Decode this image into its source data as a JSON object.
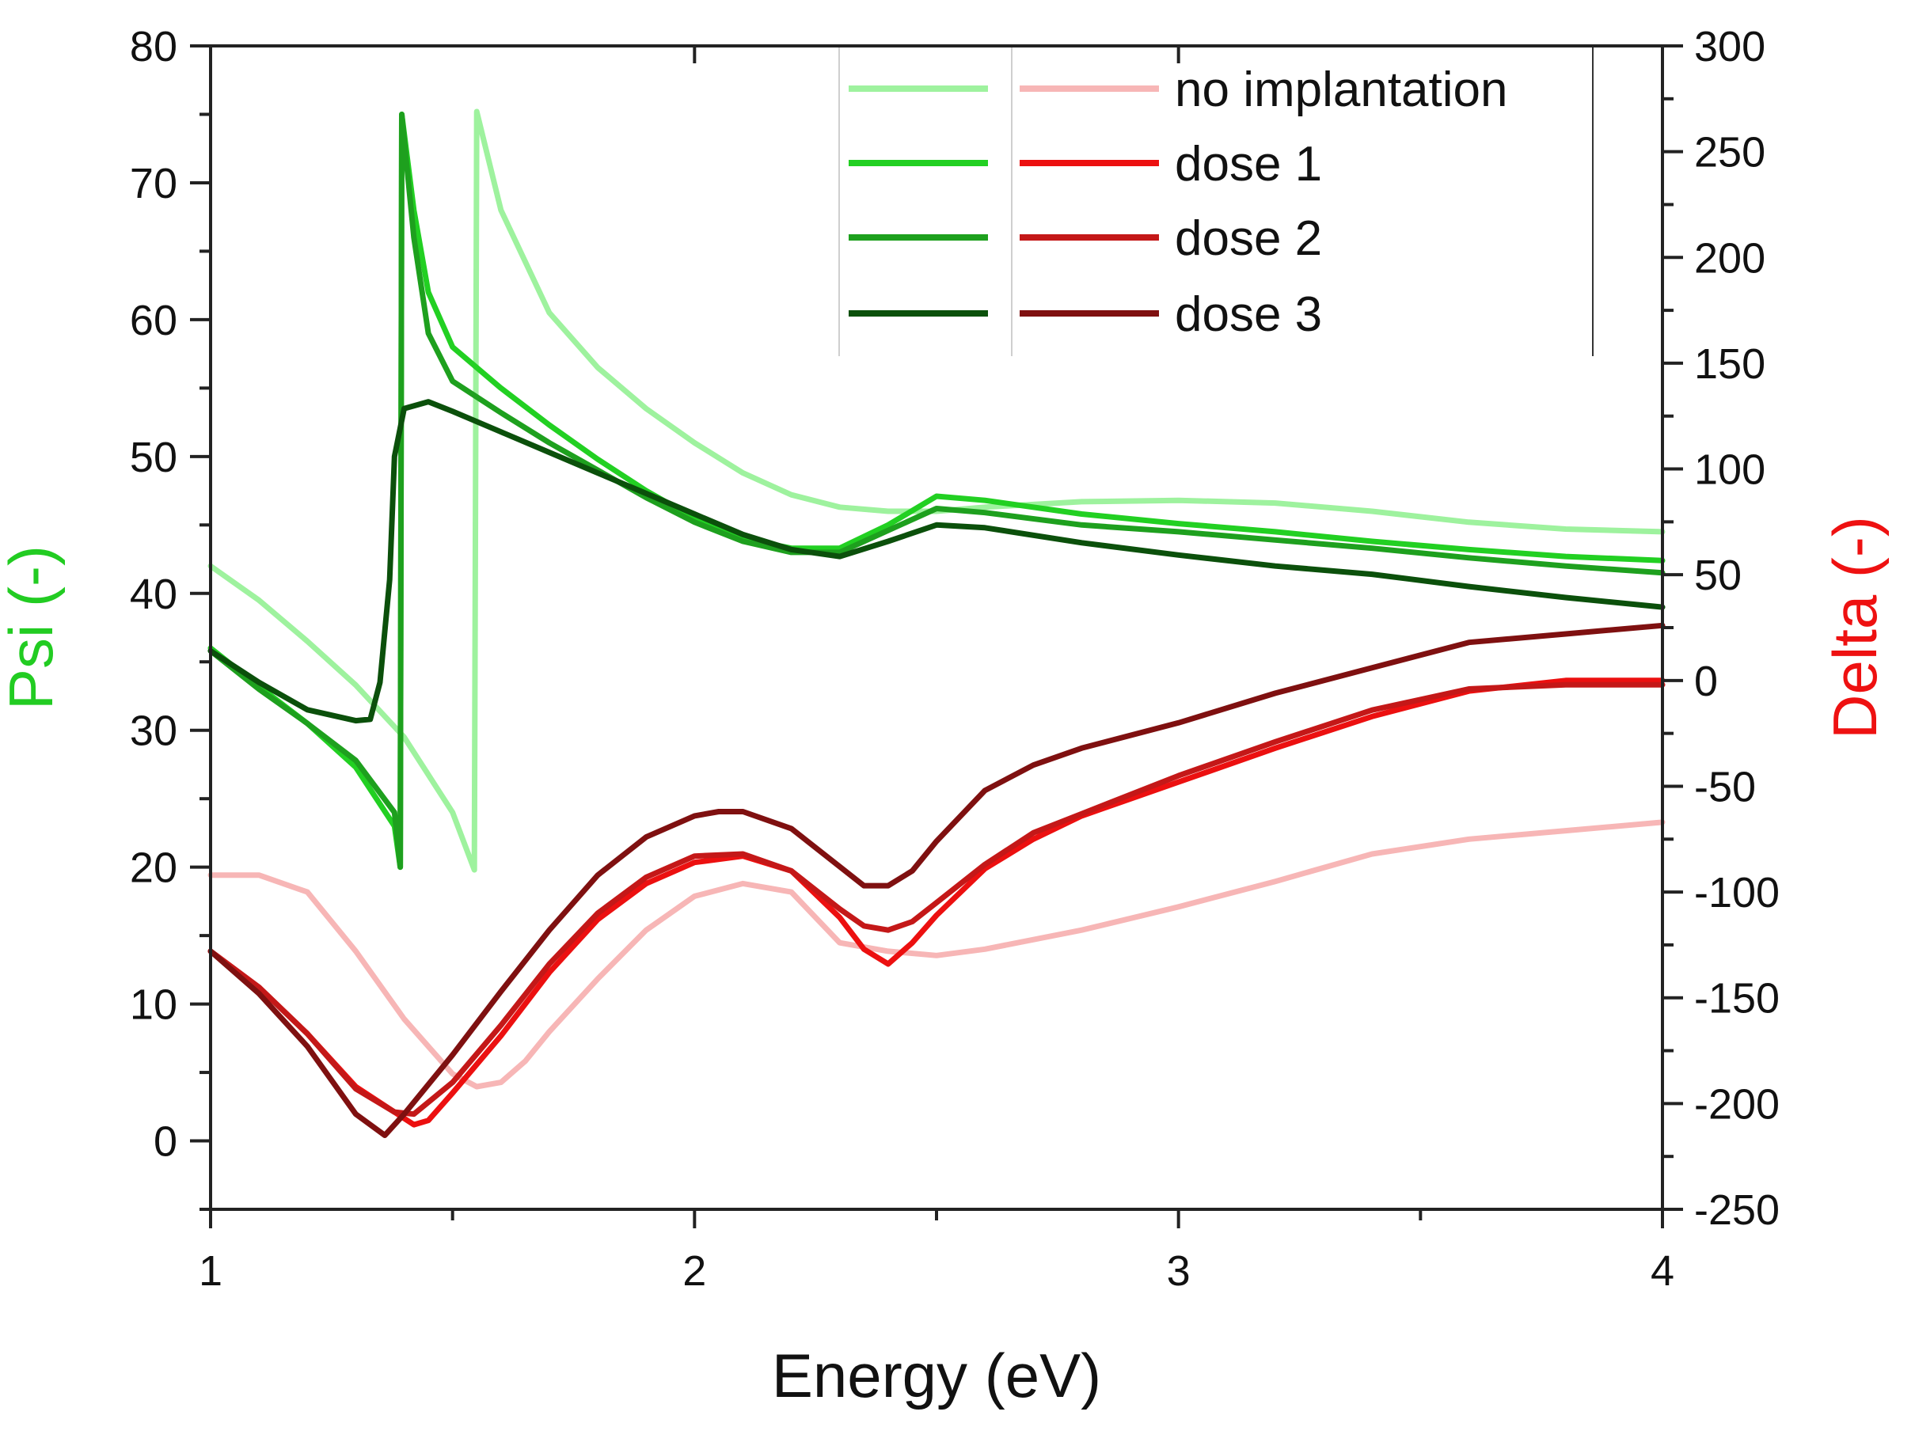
{
  "chart_data": {
    "type": "line",
    "xlabel": "Energy (eV)",
    "ylabel_left": "Psi (-)",
    "ylabel_right": "Delta (-)",
    "xlim": [
      1,
      4
    ],
    "ylim_left": [
      -5,
      80
    ],
    "ylim_right": [
      -250,
      300
    ],
    "xticks": [
      1,
      2,
      3,
      4
    ],
    "yticks_left": [
      0,
      10,
      20,
      30,
      40,
      50,
      60,
      70,
      80
    ],
    "yticks_right": [
      -250,
      -200,
      -150,
      -100,
      -50,
      0,
      50,
      100,
      150,
      200,
      250,
      300
    ],
    "grid": false,
    "legend_position": "top-right",
    "series_labels": [
      "no implantation",
      "dose 1",
      "dose 2",
      "dose 3"
    ],
    "psi_series": [
      {
        "name": "no implantation",
        "color": "#9ef29e",
        "x": [
          1.0,
          1.1,
          1.2,
          1.3,
          1.4,
          1.5,
          1.545,
          1.55,
          1.6,
          1.7,
          1.8,
          1.9,
          2.0,
          2.1,
          2.2,
          2.3,
          2.4,
          2.5,
          2.6,
          2.8,
          3.0,
          3.2,
          3.4,
          3.6,
          3.8,
          4.0
        ],
        "y": [
          42,
          39.5,
          36.5,
          33.3,
          29.5,
          24,
          19.8,
          75.2,
          68,
          60.5,
          56.5,
          53.5,
          51,
          48.8,
          47.2,
          46.3,
          46.0,
          46.0,
          46.3,
          46.7,
          46.8,
          46.6,
          46.0,
          45.2,
          44.7,
          44.5
        ]
      },
      {
        "name": "dose 1",
        "color": "#22d022",
        "x": [
          1.0,
          1.1,
          1.2,
          1.3,
          1.38,
          1.392,
          1.395,
          1.42,
          1.45,
          1.5,
          1.6,
          1.7,
          1.8,
          1.9,
          2.0,
          2.1,
          2.2,
          2.3,
          2.4,
          2.5,
          2.6,
          2.8,
          3.0,
          3.2,
          3.4,
          3.6,
          3.8,
          4.0
        ],
        "y": [
          36,
          33.2,
          30.5,
          27.3,
          23.0,
          20.0,
          75.0,
          68.0,
          62.0,
          58.0,
          55.0,
          52.3,
          49.8,
          47.5,
          45.5,
          44.0,
          43.3,
          43.3,
          45.0,
          47.1,
          46.8,
          45.8,
          45.1,
          44.5,
          43.8,
          43.2,
          42.7,
          42.4
        ]
      },
      {
        "name": "dose 2",
        "color": "#1ea01e",
        "x": [
          1.0,
          1.1,
          1.2,
          1.3,
          1.38,
          1.392,
          1.395,
          1.42,
          1.45,
          1.5,
          1.6,
          1.7,
          1.8,
          1.9,
          2.0,
          2.1,
          2.2,
          2.3,
          2.4,
          2.5,
          2.6,
          2.8,
          3.0,
          3.2,
          3.4,
          3.6,
          3.8,
          4.0
        ],
        "y": [
          35.8,
          33.0,
          30.5,
          27.8,
          24.0,
          20.0,
          75.0,
          66.0,
          59.0,
          55.5,
          53.2,
          51.0,
          49.0,
          47.0,
          45.2,
          43.8,
          43.0,
          43.0,
          44.6,
          46.2,
          45.9,
          45.0,
          44.5,
          43.9,
          43.3,
          42.6,
          42.0,
          41.5
        ]
      },
      {
        "name": "dose 3",
        "color": "#0b500b",
        "x": [
          1.0,
          1.1,
          1.2,
          1.3,
          1.33,
          1.35,
          1.37,
          1.38,
          1.4,
          1.45,
          1.5,
          1.6,
          1.7,
          1.8,
          1.9,
          2.0,
          2.1,
          2.2,
          2.3,
          2.4,
          2.5,
          2.6,
          2.8,
          3.0,
          3.2,
          3.4,
          3.6,
          3.8,
          4.0
        ],
        "y": [
          35.8,
          33.5,
          31.5,
          30.7,
          30.8,
          33.5,
          41.0,
          50.0,
          53.5,
          54.0,
          53.3,
          51.8,
          50.3,
          48.8,
          47.3,
          45.8,
          44.3,
          43.2,
          42.7,
          43.8,
          45.0,
          44.8,
          43.7,
          42.8,
          42.0,
          41.4,
          40.5,
          39.7,
          39.0
        ]
      }
    ],
    "delta_series": [
      {
        "name": "no implantation",
        "color": "#f7b6b6",
        "x": [
          1.0,
          1.1,
          1.2,
          1.3,
          1.4,
          1.5,
          1.55,
          1.6,
          1.65,
          1.7,
          1.8,
          1.9,
          2.0,
          2.1,
          2.2,
          2.3,
          2.4,
          2.5,
          2.6,
          2.8,
          3.0,
          3.2,
          3.4,
          3.6,
          3.8,
          4.0
        ],
        "y": [
          -92,
          -92,
          -100,
          -128,
          -160,
          -186,
          -192,
          -190,
          -180,
          -166,
          -141,
          -118,
          -102,
          -96,
          -100,
          -124,
          -128,
          -130,
          -127,
          -118,
          -107,
          -95,
          -82,
          -75,
          -71,
          -67
        ]
      },
      {
        "name": "dose 1",
        "color": "#ec1010",
        "x": [
          1.0,
          1.1,
          1.2,
          1.3,
          1.4,
          1.42,
          1.45,
          1.5,
          1.6,
          1.7,
          1.8,
          1.9,
          2.0,
          2.1,
          2.2,
          2.3,
          2.35,
          2.4,
          2.45,
          2.5,
          2.6,
          2.7,
          2.8,
          3.0,
          3.2,
          3.4,
          3.6,
          3.8,
          4.0
        ],
        "y": [
          -128,
          -145,
          -167,
          -192,
          -207,
          -210,
          -208,
          -195,
          -168,
          -138,
          -113,
          -96,
          -86,
          -83,
          -90,
          -112,
          -127,
          -134,
          -124,
          -111,
          -89,
          -75,
          -64,
          -48,
          -32,
          -17,
          -5,
          0,
          0
        ]
      },
      {
        "name": "dose 2",
        "color": "#c41818",
        "x": [
          1.0,
          1.1,
          1.2,
          1.3,
          1.38,
          1.42,
          1.5,
          1.6,
          1.7,
          1.8,
          1.9,
          2.0,
          2.1,
          2.2,
          2.3,
          2.35,
          2.4,
          2.45,
          2.5,
          2.6,
          2.7,
          2.8,
          3.0,
          3.2,
          3.4,
          3.6,
          3.8,
          4.0
        ],
        "y": [
          -128,
          -145,
          -167,
          -193,
          -204,
          -205,
          -190,
          -163,
          -134,
          -110,
          -93,
          -83,
          -82,
          -90,
          -108,
          -116,
          -118,
          -114,
          -105,
          -87,
          -72,
          -63,
          -45,
          -29,
          -14,
          -4,
          -2,
          -2
        ]
      },
      {
        "name": "dose 3",
        "color": "#7f1010",
        "x": [
          1.0,
          1.1,
          1.2,
          1.3,
          1.36,
          1.4,
          1.5,
          1.6,
          1.7,
          1.8,
          1.9,
          2.0,
          2.05,
          2.1,
          2.2,
          2.3,
          2.35,
          2.4,
          2.45,
          2.5,
          2.6,
          2.7,
          2.8,
          3.0,
          3.2,
          3.4,
          3.6,
          3.8,
          4.0
        ],
        "y": [
          -128,
          -148,
          -173,
          -205,
          -215,
          -205,
          -177,
          -147,
          -118,
          -92,
          -74,
          -64,
          -62,
          -62,
          -70,
          -88,
          -97,
          -97,
          -90,
          -76,
          -52,
          -40,
          -32,
          -20,
          -6,
          6,
          18,
          22,
          26
        ]
      }
    ]
  }
}
